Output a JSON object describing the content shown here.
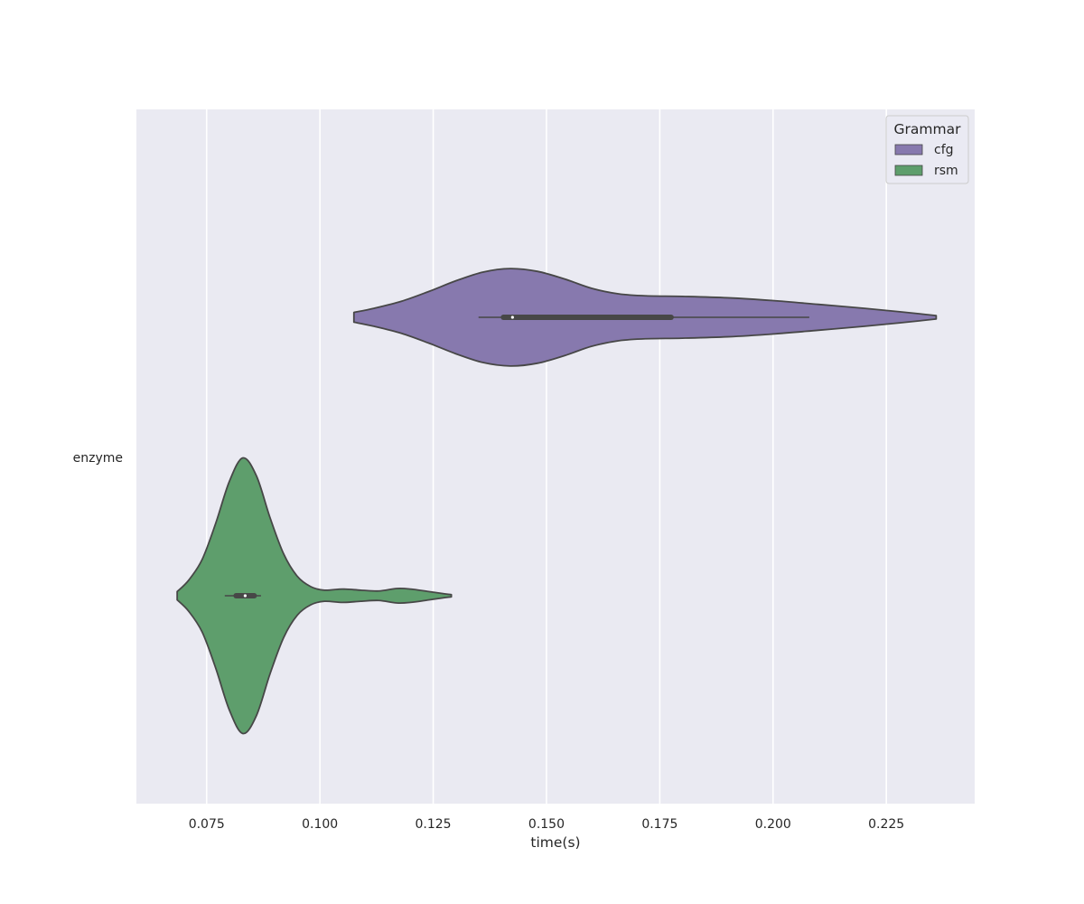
{
  "chart_data": {
    "type": "violin",
    "orientation": "horizontal",
    "title": "",
    "xlabel": "time(s)",
    "ylabel": "",
    "xlim": [
      0.0595,
      0.2445
    ],
    "xticks": [
      0.075,
      0.1,
      0.125,
      0.15,
      0.175,
      0.2,
      0.225
    ],
    "xtick_labels": [
      "0.075",
      "0.100",
      "0.125",
      "0.150",
      "0.175",
      "0.200",
      "0.225"
    ],
    "categories": [
      "enzyme"
    ],
    "grid": true,
    "background": "#eaeaf2",
    "legend": {
      "title": "Grammar",
      "placement": "top-right",
      "entries": [
        "cfg",
        "rsm"
      ]
    },
    "series": [
      {
        "name": "cfg",
        "color": "#8779ae",
        "range": [
          0.1075,
          0.236
        ],
        "whisker": [
          0.135,
          0.208
        ],
        "q1": 0.1405,
        "q3": 0.1775,
        "median": 0.1425,
        "density": [
          [
            0.1075,
            0.035
          ],
          [
            0.112,
            0.065
          ],
          [
            0.118,
            0.115
          ],
          [
            0.124,
            0.185
          ],
          [
            0.13,
            0.262
          ],
          [
            0.136,
            0.325
          ],
          [
            0.142,
            0.35
          ],
          [
            0.148,
            0.33
          ],
          [
            0.154,
            0.275
          ],
          [
            0.16,
            0.208
          ],
          [
            0.166,
            0.168
          ],
          [
            0.172,
            0.154
          ],
          [
            0.18,
            0.15
          ],
          [
            0.19,
            0.14
          ],
          [
            0.2,
            0.12
          ],
          [
            0.21,
            0.093
          ],
          [
            0.22,
            0.065
          ],
          [
            0.228,
            0.04
          ],
          [
            0.233,
            0.023
          ],
          [
            0.236,
            0.012
          ]
        ]
      },
      {
        "name": "rsm",
        "color": "#5e9e6c",
        "range": [
          0.0685,
          0.129
        ],
        "whisker": [
          0.079,
          0.087
        ],
        "q1": 0.0815,
        "q3": 0.0855,
        "median": 0.0835,
        "density": [
          [
            0.0685,
            0.03
          ],
          [
            0.071,
            0.11
          ],
          [
            0.074,
            0.26
          ],
          [
            0.077,
            0.52
          ],
          [
            0.08,
            0.82
          ],
          [
            0.083,
            0.99
          ],
          [
            0.086,
            0.86
          ],
          [
            0.089,
            0.56
          ],
          [
            0.092,
            0.3
          ],
          [
            0.095,
            0.14
          ],
          [
            0.098,
            0.065
          ],
          [
            0.101,
            0.04
          ],
          [
            0.105,
            0.048
          ],
          [
            0.109,
            0.04
          ],
          [
            0.113,
            0.034
          ],
          [
            0.117,
            0.052
          ],
          [
            0.12,
            0.048
          ],
          [
            0.124,
            0.03
          ],
          [
            0.127,
            0.016
          ],
          [
            0.129,
            0.008
          ]
        ]
      }
    ]
  }
}
